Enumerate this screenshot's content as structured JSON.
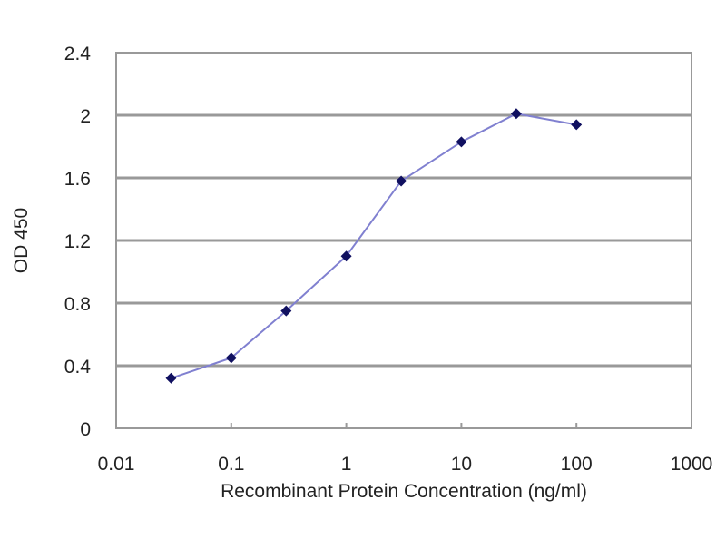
{
  "chart_data": {
    "type": "line",
    "title": "",
    "xlabel": "Recombinant Protein Concentration (ng/ml)",
    "ylabel": "OD 450",
    "x_scale": "log",
    "xlim": [
      0.01,
      1000
    ],
    "ylim": [
      0,
      2.4
    ],
    "x_ticks": [
      "0.01",
      "0.1",
      "1",
      "10",
      "100",
      "1000"
    ],
    "y_ticks": [
      "0",
      "0.4",
      "0.8",
      "1.2",
      "1.6",
      "2",
      "2.4"
    ],
    "grid": "horizontal",
    "legend": "none",
    "series": [
      {
        "x": [
          0.03,
          0.1,
          0.3,
          1,
          3,
          10,
          30,
          100
        ],
        "y": [
          0.32,
          0.45,
          0.75,
          1.1,
          1.58,
          1.83,
          2.01,
          1.94
        ],
        "line_color": "#8080d0",
        "marker_color": "#101060",
        "marker": "diamond"
      }
    ]
  }
}
